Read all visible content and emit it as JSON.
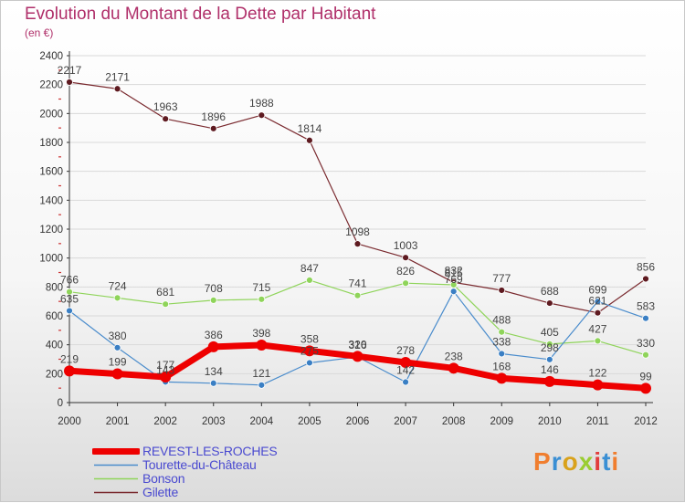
{
  "title": "Evolution du Montant de la Dette par Habitant",
  "subtitle": "(en €)",
  "brand": {
    "text": "Proxiti",
    "letters": [
      {
        "ch": "P",
        "color": "#f07e2f"
      },
      {
        "ch": "r",
        "color": "#3a8fd4"
      },
      {
        "ch": "o",
        "color": "#d9a21b"
      },
      {
        "ch": "x",
        "color": "#9acd32"
      },
      {
        "ch": "i",
        "color": "#e23d3d"
      },
      {
        "ch": "t",
        "color": "#3a8fd4"
      },
      {
        "ch": "i",
        "color": "#f07e2f"
      }
    ]
  },
  "colors": {
    "title": "#b0306a",
    "legend_text": "#4a4ad0",
    "axis": "#333333",
    "tick_red": "#cc3333",
    "grid": "#d9d9d9"
  },
  "chart_data": {
    "type": "line",
    "title": "Evolution du Montant de la Dette par Habitant",
    "subtitle": "(en €)",
    "x": [
      "2000",
      "2001",
      "2002",
      "2003",
      "2004",
      "2005",
      "2006",
      "2007",
      "2008",
      "2009",
      "2010",
      "2011",
      "2012"
    ],
    "ylim": [
      0,
      2400
    ],
    "yticks": [
      0,
      200,
      400,
      600,
      800,
      1000,
      1200,
      1400,
      1600,
      1800,
      2000,
      2200,
      2400
    ],
    "grid": "horizontal",
    "legend_position": "bottom-left",
    "series": [
      {
        "name": "Gilette",
        "color": "#7a2a2f",
        "marker": "#5e1a20",
        "width": 1.2,
        "values": [
          2217,
          2171,
          1963,
          1896,
          1988,
          1814,
          1098,
          1003,
          832,
          777,
          688,
          621,
          856
        ]
      },
      {
        "name": "Bonson",
        "color": "#8fd45a",
        "marker": "#8fd45a",
        "width": 1.2,
        "values": [
          766,
          724,
          681,
          708,
          715,
          847,
          741,
          826,
          815,
          488,
          405,
          427,
          330
        ]
      },
      {
        "name": "Tourette-du-Château",
        "color": "#4a8ccc",
        "marker": "#3a7fc4",
        "width": 1.2,
        "values": [
          635,
          380,
          143,
          134,
          121,
          275,
          316,
          142,
          769,
          338,
          298,
          699,
          583
        ]
      },
      {
        "name": "REVEST-LES-ROCHES",
        "color": "#ee0000",
        "marker": "#ee0000",
        "width": 7,
        "values": [
          219,
          199,
          177,
          386,
          398,
          358,
          320,
          278,
          238,
          168,
          146,
          122,
          99
        ]
      }
    ]
  },
  "legend": [
    {
      "name": "REVEST-LES-ROCHES",
      "color": "#ee0000",
      "swatch": "thick"
    },
    {
      "name": "Tourette-du-Château",
      "color": "#4a8ccc",
      "swatch": "thin"
    },
    {
      "name": "Bonson",
      "color": "#8fd45a",
      "swatch": "thin"
    },
    {
      "name": "Gilette",
      "color": "#7a2a2f",
      "swatch": "thin"
    }
  ]
}
